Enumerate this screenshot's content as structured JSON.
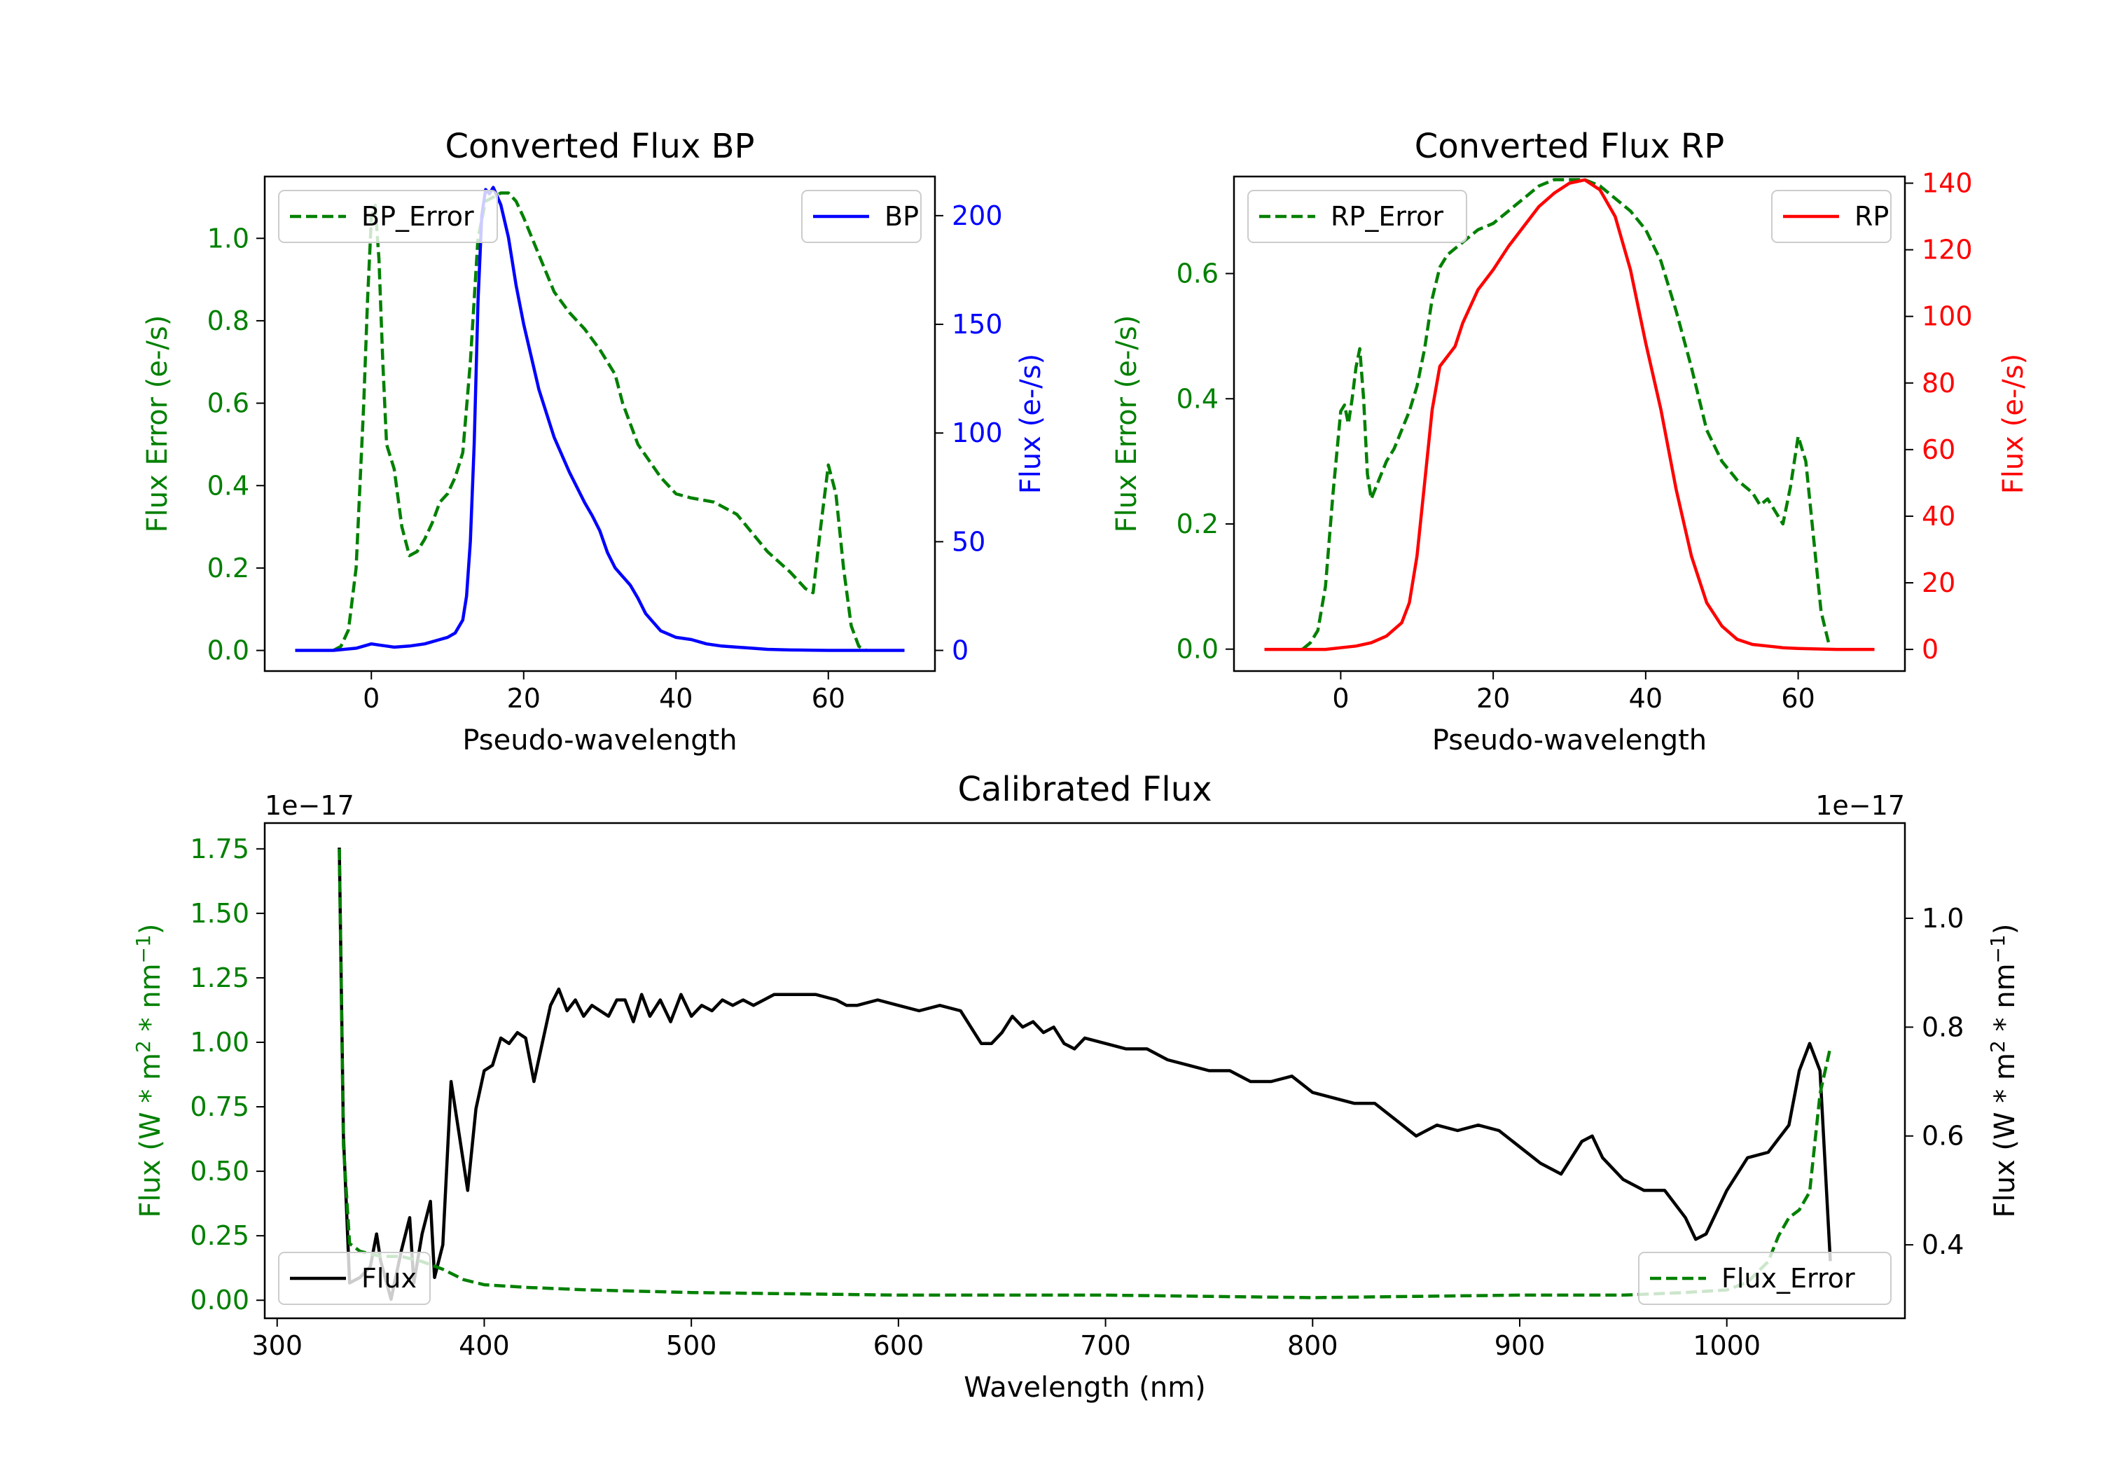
{
  "chart_data": [
    {
      "id": "bp",
      "type": "line",
      "title": "Converted Flux BP",
      "xlabel": "Pseudo-wavelength",
      "ylabel_left": "Flux Error (e-/s)",
      "ylabel_right": "Flux (e-/s)",
      "xlim": [
        -14,
        74
      ],
      "ylim_left": [
        -0.05,
        1.15
      ],
      "ylim_right": [
        -9.5,
        218
      ],
      "xticks": [
        0,
        20,
        40,
        60
      ],
      "yticks_left": [
        0.0,
        0.2,
        0.4,
        0.6,
        0.8,
        1.0
      ],
      "ytick_labels_left": [
        "0.0",
        "0.2",
        "0.4",
        "0.6",
        "0.8",
        "1.0"
      ],
      "yticks_right": [
        0,
        50,
        100,
        150,
        200
      ],
      "ytick_labels_right": [
        "0",
        "50",
        "100",
        "150",
        "200"
      ],
      "left_color": "#008000",
      "right_color": "#0000ff",
      "series": [
        {
          "name": "BP_Error",
          "axis": "left",
          "color": "#008000",
          "dash": true,
          "legend": "upper left",
          "x": [
            -5,
            -4,
            -3,
            -2,
            -1,
            -0.5,
            0,
            0.5,
            1,
            1.5,
            2,
            3,
            4,
            5,
            6,
            7,
            8,
            9,
            10,
            11,
            12,
            13,
            14,
            15,
            16,
            17,
            18,
            19,
            20,
            22,
            24,
            26,
            28,
            30,
            32,
            33,
            35,
            38,
            40,
            42,
            45,
            48,
            52,
            55,
            56,
            57,
            58,
            59,
            60,
            61,
            62,
            63,
            64,
            65
          ],
          "y": [
            0.0,
            0.01,
            0.05,
            0.2,
            0.6,
            0.85,
            1.05,
            1.08,
            0.95,
            0.7,
            0.5,
            0.44,
            0.3,
            0.23,
            0.24,
            0.27,
            0.31,
            0.36,
            0.38,
            0.42,
            0.48,
            0.7,
            1.0,
            1.09,
            1.1,
            1.11,
            1.11,
            1.09,
            1.05,
            0.96,
            0.87,
            0.82,
            0.78,
            0.73,
            0.67,
            0.6,
            0.5,
            0.42,
            0.38,
            0.37,
            0.36,
            0.33,
            0.24,
            0.19,
            0.17,
            0.15,
            0.14,
            0.3,
            0.45,
            0.38,
            0.2,
            0.06,
            0.01,
            0.0
          ]
        },
        {
          "name": "BP",
          "axis": "right",
          "color": "#0000ff",
          "dash": false,
          "legend": "upper right",
          "x": [
            -10,
            -5,
            -2,
            0,
            1,
            2,
            3,
            5,
            7,
            9,
            10,
            11,
            12,
            12.5,
            13,
            13.5,
            14,
            14.5,
            15,
            15.5,
            16,
            17,
            18,
            19,
            20,
            22,
            24,
            26,
            28,
            29,
            30,
            31,
            32,
            33,
            34,
            35,
            36,
            37,
            38,
            40,
            42,
            44,
            46,
            48,
            50,
            52,
            55,
            58,
            60,
            65,
            70
          ],
          "y": [
            0,
            0,
            1,
            3,
            2.5,
            2,
            1.5,
            2,
            3,
            5,
            6,
            8,
            14,
            25,
            50,
            95,
            160,
            200,
            212,
            210,
            213,
            205,
            190,
            168,
            150,
            120,
            98,
            82,
            68,
            62,
            55,
            45,
            38,
            34,
            30,
            24,
            17,
            13,
            9,
            6,
            5,
            3,
            2,
            1.5,
            1,
            0.5,
            0.2,
            0.1,
            0,
            0,
            0
          ]
        }
      ]
    },
    {
      "id": "rp",
      "type": "line",
      "title": "Converted Flux RP",
      "xlabel": "Pseudo-wavelength",
      "ylabel_left": "Flux Error (e-/s)",
      "ylabel_right": "Flux (e-/s)",
      "xlim": [
        -14,
        74
      ],
      "ylim_left": [
        -0.035,
        0.755
      ],
      "ylim_right": [
        -6.5,
        142
      ],
      "xticks": [
        0,
        20,
        40,
        60
      ],
      "yticks_left": [
        0.0,
        0.2,
        0.4,
        0.6
      ],
      "ytick_labels_left": [
        "0.0",
        "0.2",
        "0.4",
        "0.6"
      ],
      "yticks_right": [
        0,
        20,
        40,
        60,
        80,
        100,
        120,
        140
      ],
      "ytick_labels_right": [
        "0",
        "20",
        "40",
        "60",
        "80",
        "100",
        "120",
        "140"
      ],
      "left_color": "#008000",
      "right_color": "#ff0000",
      "series": [
        {
          "name": "RP_Error",
          "axis": "left",
          "color": "#008000",
          "dash": true,
          "legend": "upper left",
          "x": [
            -5,
            -4,
            -3,
            -2,
            -1,
            0,
            0.5,
            1,
            1.5,
            2,
            2.5,
            3,
            3.5,
            4,
            5,
            6,
            7,
            8,
            9,
            10,
            11,
            12,
            13,
            14,
            15,
            16,
            18,
            20,
            22,
            24,
            26,
            28,
            30,
            32,
            34,
            36,
            38,
            40,
            42,
            44,
            46,
            48,
            50,
            52,
            54,
            55,
            56,
            57,
            58,
            59,
            60,
            61,
            62,
            63,
            64
          ],
          "y": [
            0.0,
            0.01,
            0.03,
            0.1,
            0.25,
            0.38,
            0.39,
            0.36,
            0.4,
            0.45,
            0.48,
            0.4,
            0.28,
            0.24,
            0.27,
            0.3,
            0.32,
            0.35,
            0.38,
            0.42,
            0.48,
            0.56,
            0.61,
            0.63,
            0.64,
            0.65,
            0.67,
            0.68,
            0.7,
            0.72,
            0.74,
            0.75,
            0.75,
            0.75,
            0.74,
            0.72,
            0.7,
            0.67,
            0.62,
            0.54,
            0.45,
            0.35,
            0.3,
            0.27,
            0.25,
            0.23,
            0.24,
            0.22,
            0.2,
            0.26,
            0.34,
            0.3,
            0.18,
            0.06,
            0.01
          ]
        },
        {
          "name": "RP",
          "axis": "right",
          "color": "#ff0000",
          "dash": false,
          "legend": "upper right",
          "x": [
            -10,
            -5,
            -2,
            0,
            2,
            4,
            6,
            8,
            9,
            10,
            11,
            12,
            13,
            14,
            15,
            16,
            18,
            20,
            22,
            24,
            26,
            28,
            30,
            32,
            34,
            36,
            38,
            40,
            42,
            44,
            46,
            48,
            50,
            52,
            54,
            56,
            58,
            60,
            65,
            70
          ],
          "y": [
            0,
            0,
            0,
            0.5,
            1,
            2,
            4,
            8,
            14,
            28,
            50,
            72,
            85,
            88,
            91,
            98,
            108,
            114,
            121,
            127,
            133,
            137,
            140,
            141,
            138,
            130,
            114,
            92,
            72,
            48,
            28,
            14,
            7,
            3,
            1.5,
            1,
            0.5,
            0.3,
            0,
            0
          ]
        }
      ]
    },
    {
      "id": "cal",
      "type": "line",
      "title": "Calibrated Flux",
      "xlabel": "Wavelength (nm)",
      "ylabel_left": "Flux (W * m",
      "ylabel_left_sup1": "2",
      "ylabel_left_mid": " * nm",
      "ylabel_left_sup2": "−1",
      "ylabel_left_end": ")",
      "ylabel_right": "Flux (W * m",
      "ylabel_right_sup1": "2",
      "ylabel_right_mid": " * nm",
      "ylabel_right_sup2": "−1",
      "ylabel_right_end": ")",
      "offset_left": "1e−17",
      "offset_right": "1e−17",
      "xlim": [
        294,
        1086
      ],
      "ylim_left": [
        -0.07,
        1.85
      ],
      "ylim_right": [
        0.265,
        1.175
      ],
      "xticks": [
        300,
        400,
        500,
        600,
        700,
        800,
        900,
        1000
      ],
      "yticks_left": [
        0.0,
        0.25,
        0.5,
        0.75,
        1.0,
        1.25,
        1.5,
        1.75
      ],
      "ytick_labels_left": [
        "0.00",
        "0.25",
        "0.50",
        "0.75",
        "1.00",
        "1.25",
        "1.50",
        "1.75"
      ],
      "yticks_right": [
        0.4,
        0.6,
        0.8,
        1.0
      ],
      "ytick_labels_right": [
        "0.4",
        "0.6",
        "0.8",
        "1.0"
      ],
      "left_color": "#008000",
      "right_color": "#000000",
      "series": [
        {
          "name": "Flux",
          "axis": "right",
          "color": "#000000",
          "dash": false,
          "legend": "lower left",
          "x": [
            330,
            332,
            335,
            340,
            345,
            348,
            350,
            355,
            360,
            364,
            366,
            370,
            374,
            376,
            380,
            384,
            388,
            392,
            396,
            400,
            404,
            408,
            412,
            416,
            420,
            424,
            428,
            432,
            436,
            440,
            444,
            448,
            452,
            456,
            460,
            464,
            468,
            472,
            476,
            480,
            485,
            490,
            495,
            500,
            505,
            510,
            515,
            520,
            525,
            530,
            535,
            540,
            545,
            550,
            560,
            570,
            575,
            580,
            590,
            600,
            610,
            620,
            630,
            640,
            645,
            650,
            655,
            660,
            665,
            670,
            675,
            680,
            685,
            690,
            700,
            710,
            720,
            730,
            740,
            750,
            760,
            770,
            780,
            790,
            800,
            810,
            820,
            830,
            840,
            850,
            860,
            870,
            880,
            890,
            900,
            910,
            920,
            930,
            935,
            940,
            950,
            960,
            970,
            980,
            985,
            990,
            1000,
            1010,
            1020,
            1030,
            1035,
            1040,
            1045,
            1050
          ],
          "y": [
            1.13,
            0.6,
            0.33,
            0.34,
            0.36,
            0.42,
            0.37,
            0.3,
            0.39,
            0.45,
            0.33,
            0.42,
            0.48,
            0.34,
            0.4,
            0.7,
            0.6,
            0.5,
            0.65,
            0.72,
            0.73,
            0.78,
            0.77,
            0.79,
            0.78,
            0.7,
            0.77,
            0.84,
            0.87,
            0.83,
            0.85,
            0.82,
            0.84,
            0.83,
            0.82,
            0.85,
            0.85,
            0.81,
            0.86,
            0.82,
            0.85,
            0.81,
            0.86,
            0.82,
            0.84,
            0.83,
            0.85,
            0.84,
            0.85,
            0.84,
            0.85,
            0.86,
            0.86,
            0.86,
            0.86,
            0.85,
            0.84,
            0.84,
            0.85,
            0.84,
            0.83,
            0.84,
            0.83,
            0.77,
            0.77,
            0.79,
            0.82,
            0.8,
            0.81,
            0.79,
            0.8,
            0.77,
            0.76,
            0.78,
            0.77,
            0.76,
            0.76,
            0.74,
            0.73,
            0.72,
            0.72,
            0.7,
            0.7,
            0.71,
            0.68,
            0.67,
            0.66,
            0.66,
            0.63,
            0.6,
            0.62,
            0.61,
            0.62,
            0.61,
            0.58,
            0.55,
            0.53,
            0.59,
            0.6,
            0.56,
            0.52,
            0.5,
            0.5,
            0.45,
            0.41,
            0.42,
            0.5,
            0.56,
            0.57,
            0.62,
            0.72,
            0.77,
            0.72,
            0.37
          ]
        },
        {
          "name": "Flux_Error",
          "axis": "left",
          "color": "#008000",
          "dash": true,
          "legend": "lower right",
          "x": [
            330,
            332,
            335,
            340,
            345,
            350,
            360,
            370,
            380,
            390,
            400,
            420,
            450,
            500,
            600,
            700,
            800,
            900,
            950,
            980,
            1000,
            1010,
            1020,
            1025,
            1030,
            1035,
            1040,
            1045,
            1050
          ],
          "y": [
            1.75,
            0.6,
            0.22,
            0.19,
            0.18,
            0.17,
            0.17,
            0.15,
            0.12,
            0.08,
            0.06,
            0.05,
            0.04,
            0.03,
            0.02,
            0.02,
            0.01,
            0.02,
            0.02,
            0.03,
            0.04,
            0.07,
            0.15,
            0.25,
            0.32,
            0.35,
            0.42,
            0.8,
            0.98
          ]
        }
      ]
    }
  ]
}
